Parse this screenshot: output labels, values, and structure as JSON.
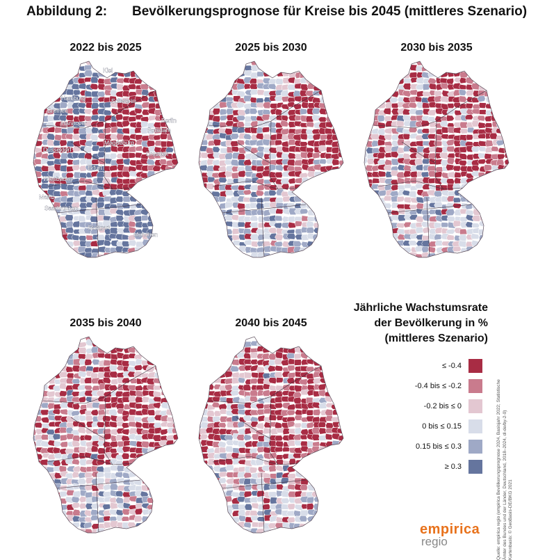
{
  "figure": {
    "label": "Abbildung 2:",
    "title": "Bevölkerungsprognose für Kreise bis 2045 (mittleres Szenario)"
  },
  "panels": [
    {
      "title": "2022 bis 2025",
      "palette_weights": [
        0.18,
        0.1,
        0.08,
        0.08,
        0.16,
        0.4
      ],
      "east_class": 0
    },
    {
      "title": "2025 bis 2030",
      "palette_weights": [
        0.25,
        0.13,
        0.14,
        0.18,
        0.2,
        0.1
      ],
      "east_class": 0
    },
    {
      "title": "2030 bis 2035",
      "palette_weights": [
        0.32,
        0.16,
        0.18,
        0.18,
        0.12,
        0.04
      ],
      "east_class": 0
    },
    {
      "title": "2035 bis 2040",
      "palette_weights": [
        0.36,
        0.18,
        0.2,
        0.14,
        0.09,
        0.03
      ],
      "east_class": 0
    },
    {
      "title": "2040 bis 2045",
      "palette_weights": [
        0.38,
        0.19,
        0.2,
        0.13,
        0.08,
        0.02
      ],
      "east_class": 0
    }
  ],
  "city_labels": [
    "Kiel",
    "Hamburg",
    "Schwerin",
    "Bremen",
    "Berlin",
    "Hannover",
    "Potsdam",
    "Magdeburg",
    "Düsseldorf",
    "Dresden",
    "Erfurt",
    "Wiesbaden",
    "Mainz",
    "Saarbrücken",
    "Stuttgart",
    "München"
  ],
  "legend": {
    "title_lines": [
      "Jährliche Wachstumsrate",
      "der Bevölkerung in %",
      "(mittleres Szenario)"
    ],
    "items": [
      {
        "label": "≤ -0.4",
        "color": "#a82c44"
      },
      {
        "label": "-0.4 bis ≤ -0.2",
        "color": "#c97b8d"
      },
      {
        "label": "-0.2 bis ≤ 0",
        "color": "#e3c7d1"
      },
      {
        "label": "0 bis ≤ 0.15",
        "color": "#d8dde9"
      },
      {
        "label": "0.15 bis ≤ 0.3",
        "color": "#9fa9c6"
      },
      {
        "label": "≥ 0.3",
        "color": "#65759e"
      }
    ]
  },
  "source_lines": [
    "Quelle: empirica regio (empirica Bevölkerungsprognose 2024, Basisjahr 2022; Statistische",
    "Ämter des Bundes und der Länder, Deutschland, 2018–2024, dl-de/by-2-0)",
    "Kartenbasis: © GeoBasis-DE/BKG 2021"
  ],
  "logo": {
    "line1": "empirica",
    "line2": "regio"
  }
}
